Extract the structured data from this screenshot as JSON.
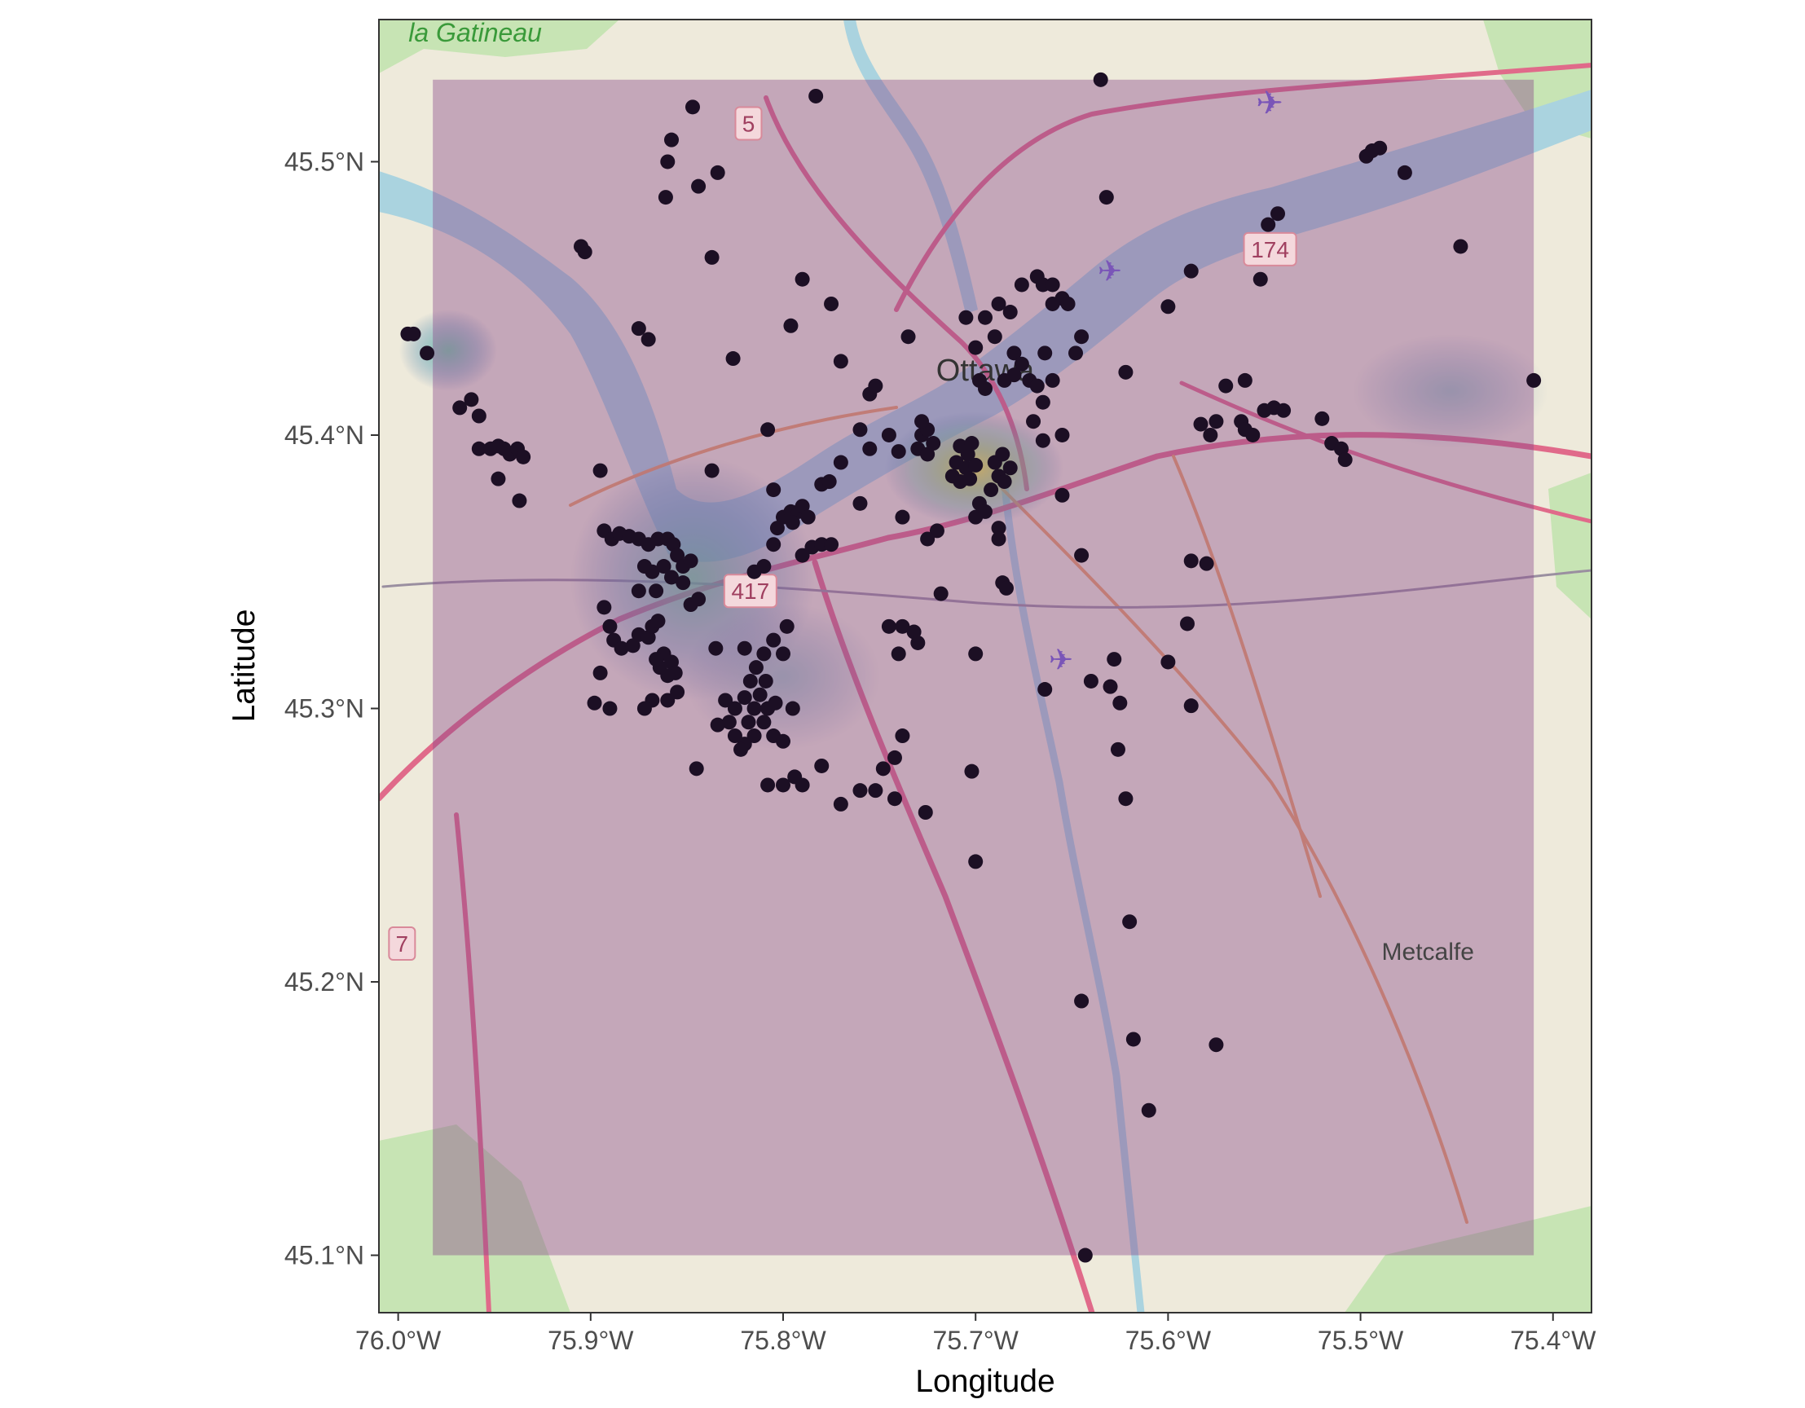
{
  "map": {
    "xlabel": "Longitude",
    "ylabel": "Latitude",
    "lon_range": [
      -76.01,
      -75.38
    ],
    "lat_range": [
      45.079,
      45.552
    ],
    "x_ticks": [
      {
        "value": -76.0,
        "label": "76.0°W"
      },
      {
        "value": -75.9,
        "label": "75.9°W"
      },
      {
        "value": -75.8,
        "label": "75.8°W"
      },
      {
        "value": -75.7,
        "label": "75.7°W"
      },
      {
        "value": -75.6,
        "label": "75.6°W"
      },
      {
        "value": -75.5,
        "label": "75.5°W"
      },
      {
        "value": -75.4,
        "label": "75.4°W"
      }
    ],
    "y_ticks": [
      {
        "value": 45.1,
        "label": "45.1°N"
      },
      {
        "value": 45.2,
        "label": "45.2°N"
      },
      {
        "value": 45.3,
        "label": "45.3°N"
      },
      {
        "value": 45.4,
        "label": "45.4°N"
      },
      {
        "value": 45.5,
        "label": "45.5°N"
      }
    ],
    "overlay_extent": {
      "lon": [
        -75.982,
        -75.41
      ],
      "lat": [
        45.1,
        45.53
      ]
    },
    "place_labels": [
      {
        "text": "la Gatineau",
        "lon": -75.96,
        "lat": 45.544,
        "color": "#3a9a3a"
      },
      {
        "text": "Ottawa",
        "lon": -75.695,
        "lat": 45.42,
        "color": "#333333"
      },
      {
        "text": "Metcalfe",
        "lon": -75.465,
        "lat": 45.208,
        "color": "#444444"
      }
    ],
    "road_shields": [
      {
        "text": "5",
        "lon": -75.818,
        "lat": 45.514
      },
      {
        "text": "174",
        "lon": -75.547,
        "lat": 45.468
      },
      {
        "text": "417",
        "lon": -75.817,
        "lat": 45.343
      },
      {
        "text": "7",
        "lon": -75.998,
        "lat": 45.214
      }
    ],
    "colors": {
      "water": "#aad3df",
      "land": "#eeeadb",
      "park": "#c7e4b4",
      "overlay": "#8a4a8a",
      "point": "#1c0f24",
      "heat_high": "#f2ee4a",
      "heat_mid": "#55c49a",
      "heat_low": "#3b6aa3",
      "axis_text": "#4d4d4d"
    }
  },
  "chart_data": {
    "type": "scatter",
    "xlabel": "Longitude",
    "ylabel": "Latitude",
    "xlim": [
      -76.01,
      -75.38
    ],
    "ylim": [
      45.079,
      45.552
    ],
    "x_ticks": [
      "76.0°W",
      "75.9°W",
      "75.8°W",
      "75.7°W",
      "75.6°W",
      "75.5°W",
      "75.4°W"
    ],
    "y_ticks": [
      "45.1°N",
      "45.2°N",
      "45.3°N",
      "45.4°N",
      "45.5°N"
    ],
    "density_hotspots": [
      {
        "lon": -75.71,
        "lat": 45.387,
        "level": "high"
      },
      {
        "lon": -75.855,
        "lat": 45.33,
        "level": "mid"
      },
      {
        "lon": -75.98,
        "lat": 45.432,
        "level": "mid"
      },
      {
        "lon": -75.81,
        "lat": 45.3,
        "level": "low"
      }
    ],
    "points": [
      [
        -75.995,
        45.437
      ],
      [
        -75.992,
        45.437
      ],
      [
        -75.985,
        45.43
      ],
      [
        -75.968,
        45.41
      ],
      [
        -75.962,
        45.413
      ],
      [
        -75.958,
        45.407
      ],
      [
        -75.958,
        45.395
      ],
      [
        -75.952,
        45.395
      ],
      [
        -75.948,
        45.396
      ],
      [
        -75.945,
        45.395
      ],
      [
        -75.942,
        45.393
      ],
      [
        -75.938,
        45.395
      ],
      [
        -75.935,
        45.392
      ],
      [
        -75.948,
        45.384
      ],
      [
        -75.937,
        45.376
      ],
      [
        -75.905,
        45.469
      ],
      [
        -75.903,
        45.467
      ],
      [
        -75.895,
        45.387
      ],
      [
        -75.87,
        45.435
      ],
      [
        -75.875,
        45.439
      ],
      [
        -75.86,
        45.5
      ],
      [
        -75.861,
        45.487
      ],
      [
        -75.858,
        45.508
      ],
      [
        -75.847,
        45.52
      ],
      [
        -75.844,
        45.491
      ],
      [
        -75.837,
        45.465
      ],
      [
        -75.834,
        45.496
      ],
      [
        -75.826,
        45.428
      ],
      [
        -75.837,
        45.387
      ],
      [
        -75.808,
        45.402
      ],
      [
        -75.796,
        45.44
      ],
      [
        -75.783,
        45.524
      ],
      [
        -75.79,
        45.457
      ],
      [
        -75.775,
        45.448
      ],
      [
        -75.77,
        45.427
      ],
      [
        -75.893,
        45.365
      ],
      [
        -75.889,
        45.362
      ],
      [
        -75.885,
        45.364
      ],
      [
        -75.88,
        45.363
      ],
      [
        -75.875,
        45.362
      ],
      [
        -75.87,
        45.36
      ],
      [
        -75.865,
        45.362
      ],
      [
        -75.86,
        45.362
      ],
      [
        -75.857,
        45.36
      ],
      [
        -75.855,
        45.356
      ],
      [
        -75.852,
        45.352
      ],
      [
        -75.848,
        45.354
      ],
      [
        -75.862,
        45.352
      ],
      [
        -75.868,
        45.35
      ],
      [
        -75.872,
        45.352
      ],
      [
        -75.875,
        45.343
      ],
      [
        -75.866,
        45.343
      ],
      [
        -75.858,
        45.348
      ],
      [
        -75.852,
        45.346
      ],
      [
        -75.848,
        45.338
      ],
      [
        -75.844,
        45.34
      ],
      [
        -75.893,
        45.337
      ],
      [
        -75.89,
        45.33
      ],
      [
        -75.888,
        45.325
      ],
      [
        -75.884,
        45.322
      ],
      [
        -75.878,
        45.323
      ],
      [
        -75.875,
        45.327
      ],
      [
        -75.87,
        45.326
      ],
      [
        -75.868,
        45.33
      ],
      [
        -75.865,
        45.332
      ],
      [
        -75.862,
        45.32
      ],
      [
        -75.858,
        45.317
      ],
      [
        -75.856,
        45.313
      ],
      [
        -75.86,
        45.312
      ],
      [
        -75.864,
        45.315
      ],
      [
        -75.866,
        45.318
      ],
      [
        -75.855,
        45.306
      ],
      [
        -75.86,
        45.303
      ],
      [
        -75.868,
        45.303
      ],
      [
        -75.872,
        45.3
      ],
      [
        -75.89,
        45.3
      ],
      [
        -75.898,
        45.302
      ],
      [
        -75.895,
        45.313
      ],
      [
        -75.835,
        45.322
      ],
      [
        -75.82,
        45.322
      ],
      [
        -75.81,
        45.32
      ],
      [
        -75.8,
        45.32
      ],
      [
        -75.805,
        45.325
      ],
      [
        -75.798,
        45.33
      ],
      [
        -75.83,
        45.303
      ],
      [
        -75.825,
        45.3
      ],
      [
        -75.82,
        45.304
      ],
      [
        -75.815,
        45.3
      ],
      [
        -75.812,
        45.305
      ],
      [
        -75.808,
        45.3
      ],
      [
        -75.804,
        45.302
      ],
      [
        -75.81,
        45.295
      ],
      [
        -75.818,
        45.295
      ],
      [
        -75.828,
        45.295
      ],
      [
        -75.834,
        45.294
      ],
      [
        -75.825,
        45.29
      ],
      [
        -75.82,
        45.287
      ],
      [
        -75.815,
        45.29
      ],
      [
        -75.805,
        45.29
      ],
      [
        -75.8,
        45.288
      ],
      [
        -75.795,
        45.3
      ],
      [
        -75.822,
        45.285
      ],
      [
        -75.814,
        45.315
      ],
      [
        -75.809,
        45.31
      ],
      [
        -75.817,
        45.31
      ],
      [
        -75.808,
        45.272
      ],
      [
        -75.8,
        45.272
      ],
      [
        -75.794,
        45.275
      ],
      [
        -75.79,
        45.272
      ],
      [
        -75.78,
        45.279
      ],
      [
        -75.77,
        45.265
      ],
      [
        -75.76,
        45.27
      ],
      [
        -75.752,
        45.27
      ],
      [
        -75.748,
        45.278
      ],
      [
        -75.742,
        45.282
      ],
      [
        -75.742,
        45.267
      ],
      [
        -75.738,
        45.29
      ],
      [
        -75.726,
        45.262
      ],
      [
        -75.845,
        45.278
      ],
      [
        -75.81,
        45.352
      ],
      [
        -75.815,
        45.35
      ],
      [
        -75.805,
        45.36
      ],
      [
        -75.803,
        45.366
      ],
      [
        -75.8,
        45.37
      ],
      [
        -75.796,
        45.372
      ],
      [
        -75.792,
        45.372
      ],
      [
        -75.79,
        45.374
      ],
      [
        -75.787,
        45.37
      ],
      [
        -75.795,
        45.368
      ],
      [
        -75.79,
        45.356
      ],
      [
        -75.785,
        45.359
      ],
      [
        -75.78,
        45.36
      ],
      [
        -75.775,
        45.36
      ],
      [
        -75.805,
        45.38
      ],
      [
        -75.78,
        45.382
      ],
      [
        -75.776,
        45.383
      ],
      [
        -75.77,
        45.39
      ],
      [
        -75.76,
        45.375
      ],
      [
        -75.755,
        45.395
      ],
      [
        -75.76,
        45.402
      ],
      [
        -75.755,
        45.415
      ],
      [
        -75.752,
        45.418
      ],
      [
        -75.74,
        45.394
      ],
      [
        -75.745,
        45.4
      ],
      [
        -75.738,
        45.37
      ],
      [
        -75.735,
        45.436
      ],
      [
        -75.73,
        45.395
      ],
      [
        -75.728,
        45.4
      ],
      [
        -75.725,
        45.393
      ],
      [
        -75.722,
        45.397
      ],
      [
        -75.725,
        45.402
      ],
      [
        -75.728,
        45.405
      ],
      [
        -75.712,
        45.385
      ],
      [
        -75.708,
        45.383
      ],
      [
        -75.71,
        45.39
      ],
      [
        -75.705,
        45.388
      ],
      [
        -75.703,
        45.384
      ],
      [
        -75.7,
        45.389
      ],
      [
        -75.704,
        45.393
      ],
      [
        -75.708,
        45.396
      ],
      [
        -75.702,
        45.397
      ],
      [
        -75.69,
        45.39
      ],
      [
        -75.686,
        45.393
      ],
      [
        -75.682,
        45.388
      ],
      [
        -75.688,
        45.385
      ],
      [
        -75.692,
        45.38
      ],
      [
        -75.685,
        45.383
      ],
      [
        -75.698,
        45.375
      ],
      [
        -75.7,
        45.37
      ],
      [
        -75.695,
        45.372
      ],
      [
        -75.7,
        45.432
      ],
      [
        -75.698,
        45.42
      ],
      [
        -75.695,
        45.417
      ],
      [
        -75.705,
        45.443
      ],
      [
        -75.695,
        45.443
      ],
      [
        -75.69,
        45.436
      ],
      [
        -75.688,
        45.448
      ],
      [
        -75.682,
        45.445
      ],
      [
        -75.68,
        45.43
      ],
      [
        -75.676,
        45.426
      ],
      [
        -75.672,
        45.42
      ],
      [
        -75.668,
        45.418
      ],
      [
        -75.664,
        45.43
      ],
      [
        -75.685,
        45.42
      ],
      [
        -75.68,
        45.422
      ],
      [
        -75.676,
        45.455
      ],
      [
        -75.668,
        45.458
      ],
      [
        -75.665,
        45.455
      ],
      [
        -75.66,
        45.455
      ],
      [
        -75.655,
        45.45
      ],
      [
        -75.66,
        45.448
      ],
      [
        -75.652,
        45.448
      ],
      [
        -75.645,
        45.436
      ],
      [
        -75.648,
        45.43
      ],
      [
        -75.665,
        45.412
      ],
      [
        -75.67,
        45.405
      ],
      [
        -75.665,
        45.398
      ],
      [
        -75.655,
        45.4
      ],
      [
        -75.66,
        45.42
      ],
      [
        -75.72,
        45.365
      ],
      [
        -75.725,
        45.362
      ],
      [
        -75.718,
        45.342
      ],
      [
        -75.688,
        45.366
      ],
      [
        -75.686,
        45.346
      ],
      [
        -75.684,
        45.344
      ],
      [
        -75.688,
        45.362
      ],
      [
        -75.745,
        45.33
      ],
      [
        -75.738,
        45.33
      ],
      [
        -75.732,
        45.328
      ],
      [
        -75.74,
        45.32
      ],
      [
        -75.73,
        45.324
      ],
      [
        -75.7,
        45.32
      ],
      [
        -75.702,
        45.277
      ],
      [
        -75.7,
        45.244
      ],
      [
        -75.664,
        45.307
      ],
      [
        -75.655,
        45.378
      ],
      [
        -75.645,
        45.356
      ],
      [
        -75.64,
        45.31
      ],
      [
        -75.635,
        45.53
      ],
      [
        -75.632,
        45.487
      ],
      [
        -75.622,
        45.423
      ],
      [
        -75.6,
        45.447
      ],
      [
        -75.588,
        45.46
      ],
      [
        -75.57,
        45.418
      ],
      [
        -75.56,
        45.42
      ],
      [
        -75.562,
        45.405
      ],
      [
        -75.56,
        45.402
      ],
      [
        -75.556,
        45.4
      ],
      [
        -75.55,
        45.409
      ],
      [
        -75.545,
        45.41
      ],
      [
        -75.54,
        45.409
      ],
      [
        -75.578,
        45.4
      ],
      [
        -75.583,
        45.404
      ],
      [
        -75.575,
        45.405
      ],
      [
        -75.552,
        45.457
      ],
      [
        -75.548,
        45.477
      ],
      [
        -75.543,
        45.481
      ],
      [
        -75.52,
        45.406
      ],
      [
        -75.515,
        45.397
      ],
      [
        -75.51,
        45.395
      ],
      [
        -75.508,
        45.391
      ],
      [
        -75.497,
        45.502
      ],
      [
        -75.494,
        45.504
      ],
      [
        -75.49,
        45.505
      ],
      [
        -75.477,
        45.496
      ],
      [
        -75.448,
        45.469
      ],
      [
        -75.41,
        45.42
      ],
      [
        -75.588,
        45.354
      ],
      [
        -75.58,
        45.353
      ],
      [
        -75.59,
        45.331
      ],
      [
        -75.6,
        45.317
      ],
      [
        -75.588,
        45.301
      ],
      [
        -75.628,
        45.318
      ],
      [
        -75.63,
        45.308
      ],
      [
        -75.625,
        45.302
      ],
      [
        -75.626,
        45.285
      ],
      [
        -75.622,
        45.267
      ],
      [
        -75.62,
        45.222
      ],
      [
        -75.618,
        45.179
      ],
      [
        -75.61,
        45.153
      ],
      [
        -75.645,
        45.193
      ],
      [
        -75.575,
        45.177
      ],
      [
        -75.643,
        45.1
      ]
    ]
  }
}
